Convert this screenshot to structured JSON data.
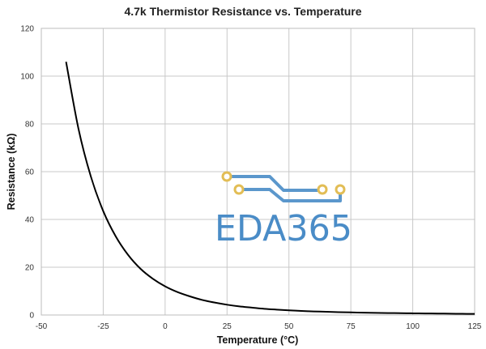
{
  "chart_data": {
    "type": "line",
    "title": "4.7k Thermistor Resistance vs. Temperature",
    "xlabel": "Temperature (°C)",
    "ylabel": "Resistance (kΩ)",
    "xlim": [
      -50,
      125
    ],
    "ylim": [
      0,
      120
    ],
    "x_ticks": [
      -50,
      -25,
      0,
      25,
      50,
      75,
      100,
      125
    ],
    "y_ticks": [
      0,
      20,
      40,
      60,
      80,
      100,
      120
    ],
    "grid": true,
    "series": [
      {
        "color": "#000000",
        "x": [
          -40,
          -35,
          -30,
          -25,
          -20,
          -15,
          -10,
          -5,
          0,
          5,
          10,
          15,
          20,
          25,
          30,
          35,
          40,
          45,
          50,
          55,
          60,
          65,
          70,
          75,
          80,
          85,
          90,
          95,
          100,
          105,
          110,
          115,
          120,
          125
        ],
        "y": [
          106,
          78,
          58,
          43.5,
          33,
          25.2,
          19.4,
          15.2,
          12,
          9.6,
          7.8,
          6.3,
          5.2,
          4.3,
          3.6,
          3.1,
          2.6,
          2.25,
          1.95,
          1.7,
          1.5,
          1.35,
          1.2,
          1.08,
          0.98,
          0.9,
          0.82,
          0.76,
          0.7,
          0.65,
          0.6,
          0.55,
          0.5,
          0.45
        ]
      }
    ]
  },
  "watermark": {
    "text": "EDA365",
    "colors": {
      "text": "#4a8cc7",
      "trace": "#5b97cc",
      "pad": "#e2bd55"
    }
  }
}
